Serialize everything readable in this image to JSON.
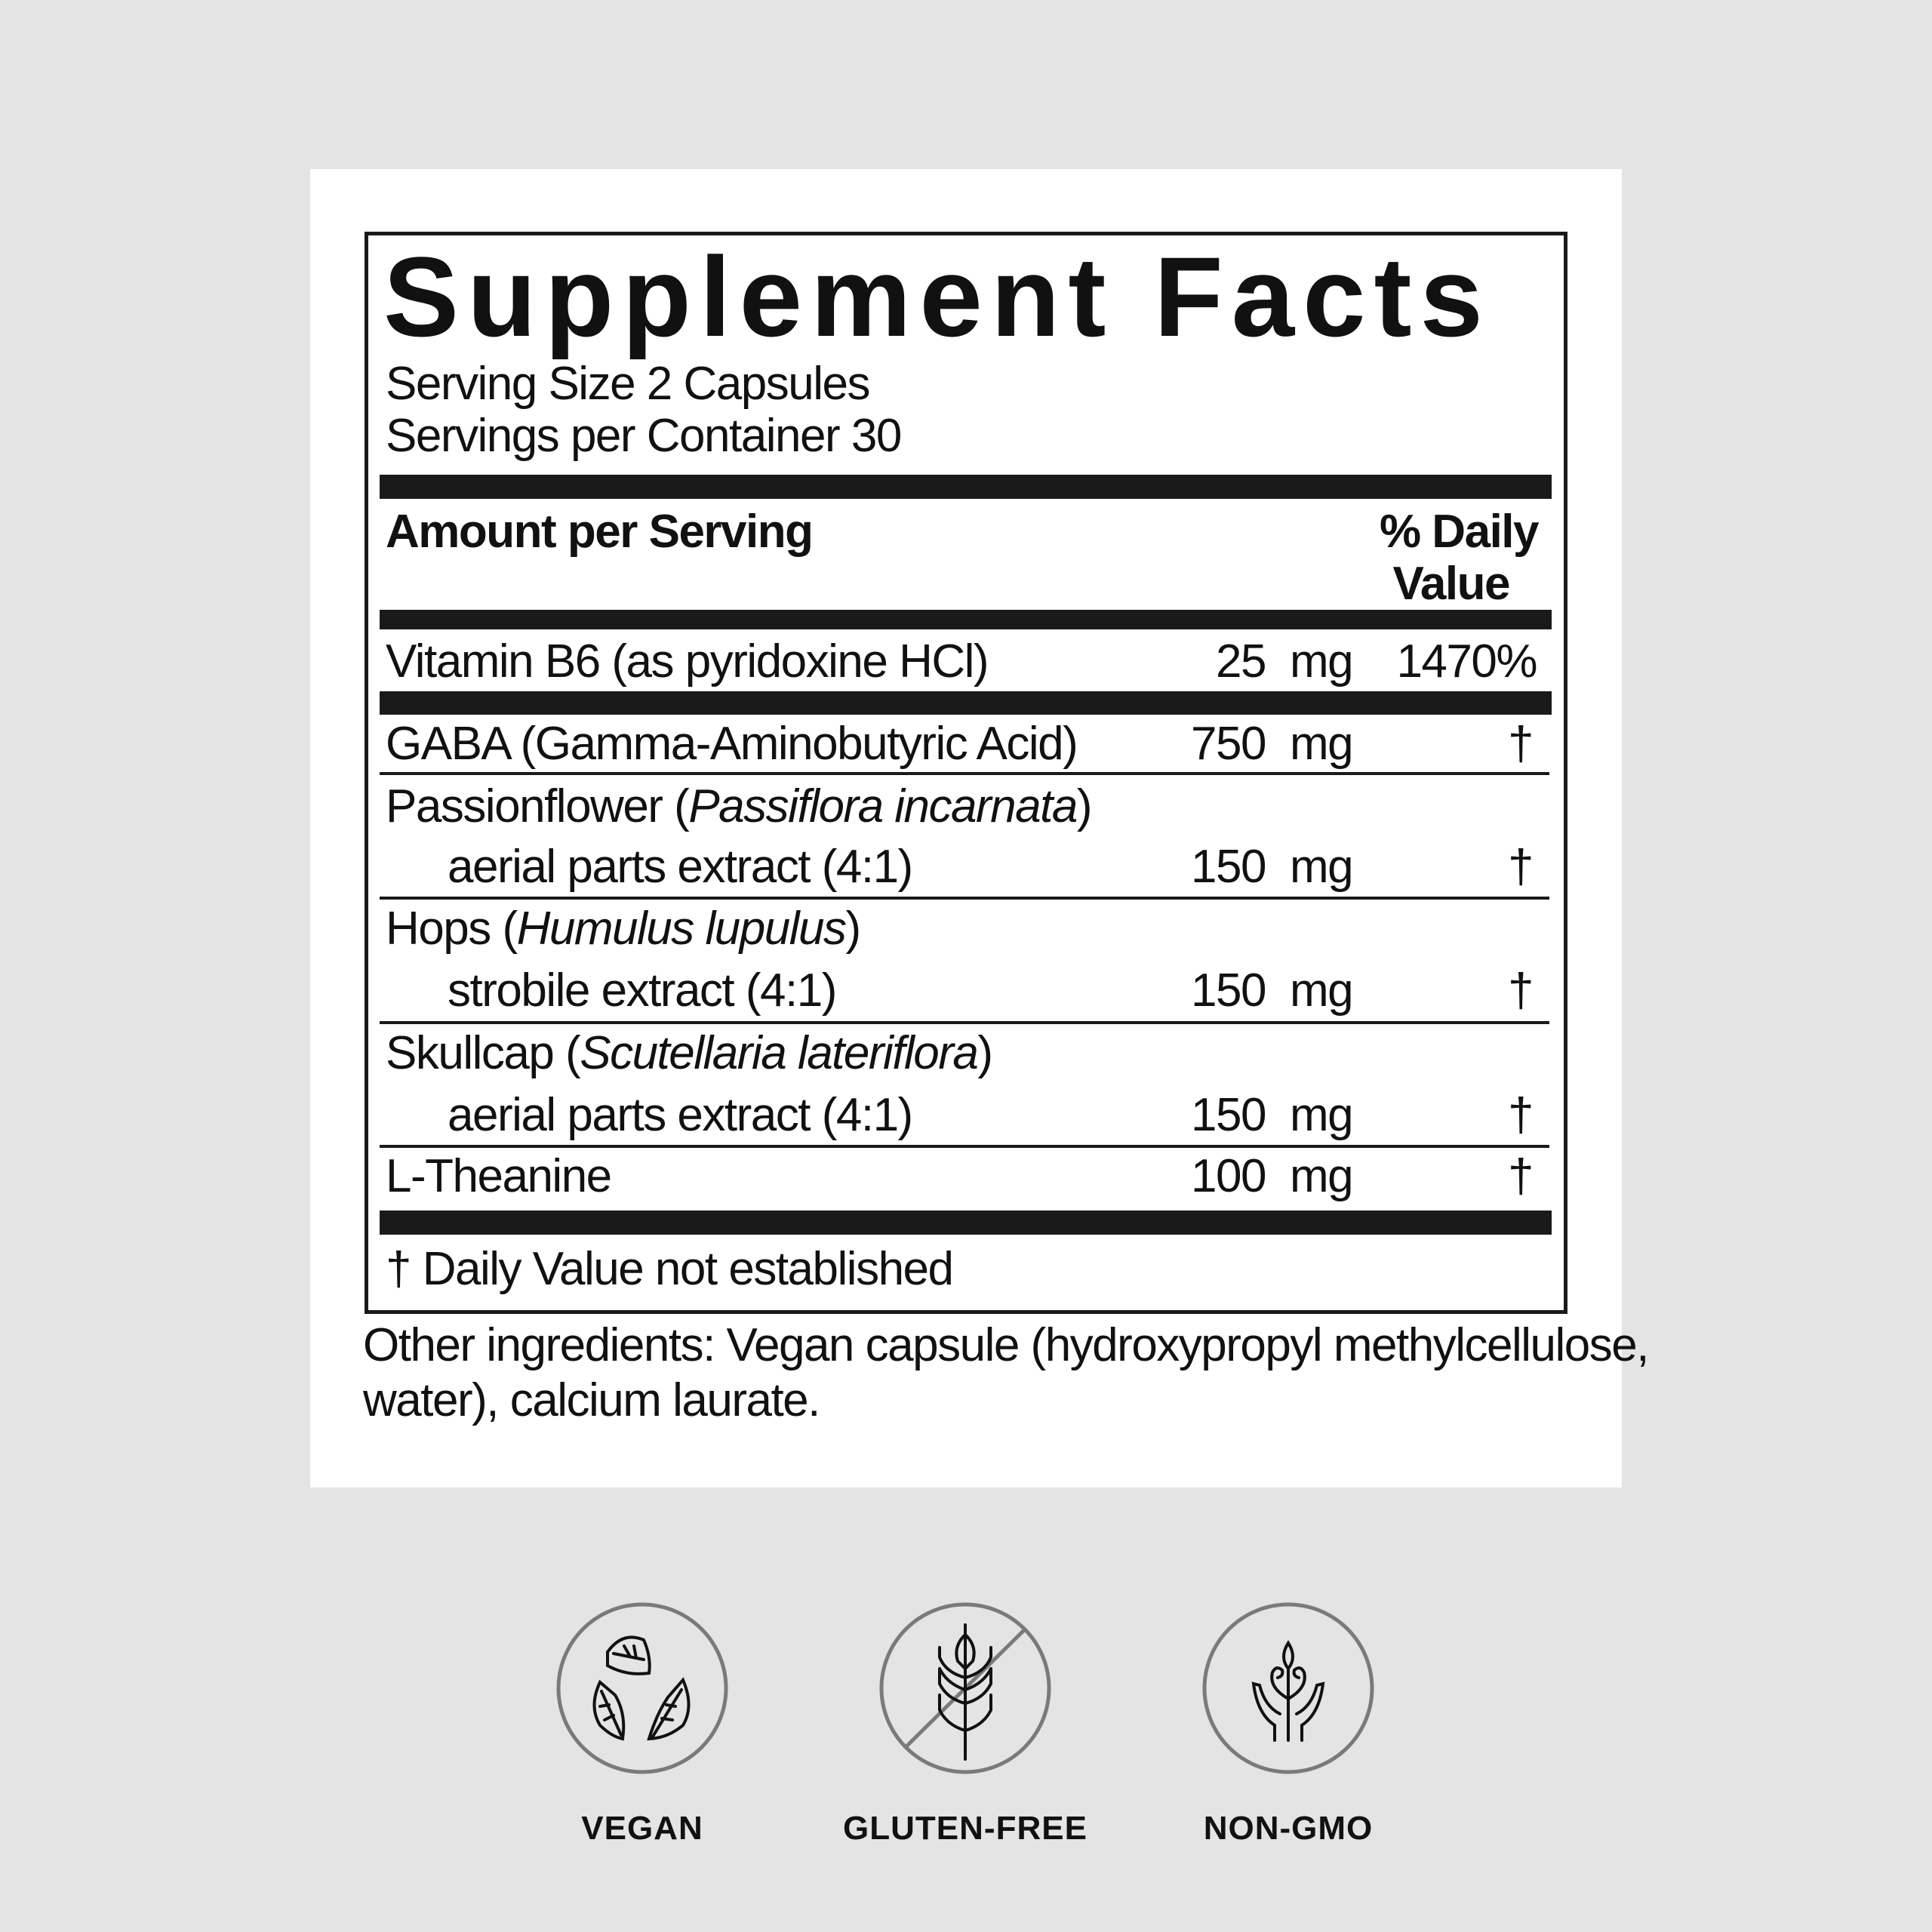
{
  "label": {
    "title": "Supplement Facts",
    "serving_size": "Serving Size 2 Capsules",
    "servings_per_container": "Servings per Container 30",
    "amount_header": "Amount per Serving",
    "dv_header_1": "% Daily",
    "dv_header_2": "Value",
    "rows": [
      {
        "name": "Vitamin B6 (as pyridoxine HCl)",
        "amount": "25",
        "unit": "mg",
        "dv": "1470%"
      },
      {
        "name": "GABA (Gamma-Aminobutyric Acid)",
        "amount": "750",
        "unit": "mg",
        "dv": "†"
      },
      {
        "name": "Passionflower (",
        "latin": "Passiflora incarnata",
        "close": ")",
        "sub": "aerial parts extract (4:1)",
        "amount": "150",
        "unit": "mg",
        "dv": "†"
      },
      {
        "name": "Hops (",
        "latin": "Humulus lupulus",
        "close": ")",
        "sub": "strobile extract (4:1)",
        "amount": "150",
        "unit": "mg",
        "dv": "†"
      },
      {
        "name": "Skullcap (",
        "latin": "Scutellaria lateriflora",
        "close": ")",
        "sub": "aerial parts extract (4:1)",
        "amount": "150",
        "unit": "mg",
        "dv": "†"
      },
      {
        "name": "L-Theanine",
        "amount": "100",
        "unit": "mg",
        "dv": "†"
      }
    ],
    "footnote": "† Daily Value not established",
    "other_1": "Other ingredients: Vegan capsule (hydroxypropyl methylcellulose,",
    "other_2": "water), calcium laurate."
  },
  "badges": [
    {
      "label": "VEGAN",
      "icon": "leaves-cycle-icon"
    },
    {
      "label": "GLUTEN-FREE",
      "icon": "wheat-crossed-icon"
    },
    {
      "label": "NON-GMO",
      "icon": "hands-plant-icon"
    }
  ],
  "colors": {
    "background": "#e4e4e4",
    "ink": "#1a1a1a",
    "badge_ring": "#7a7a7a"
  }
}
